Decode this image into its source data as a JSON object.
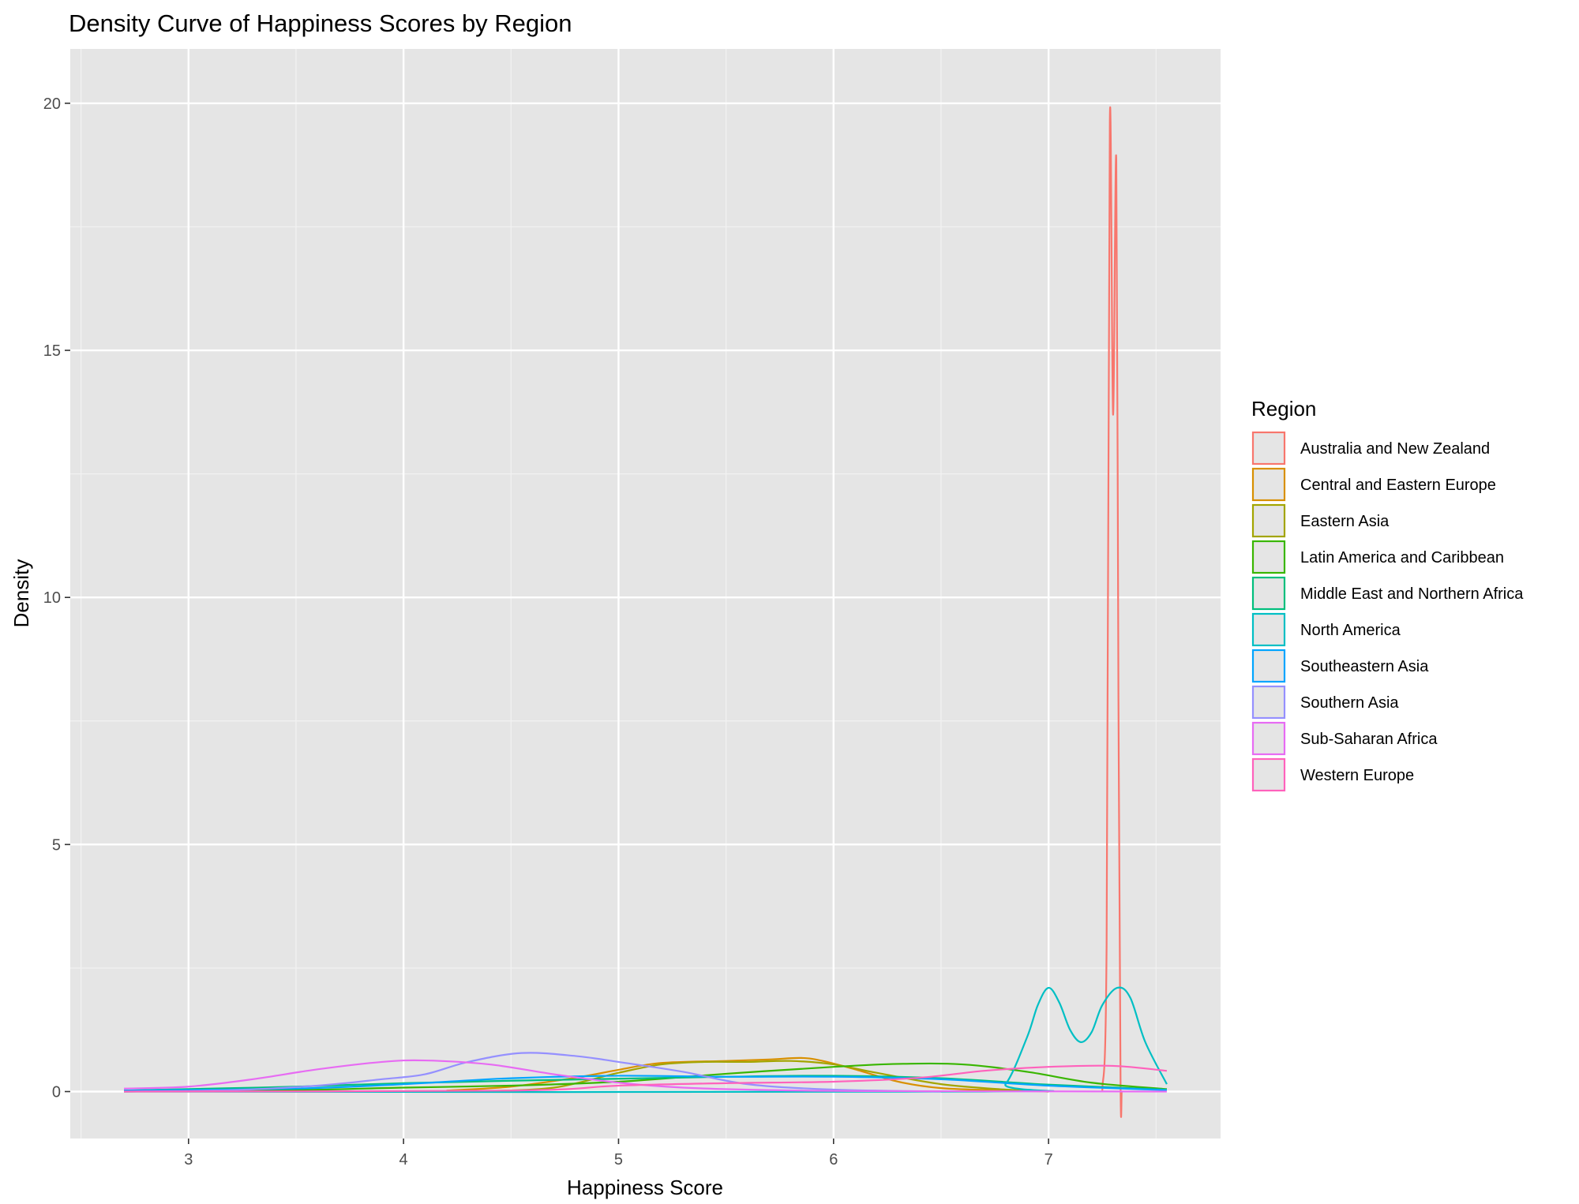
{
  "chart_data": {
    "type": "line",
    "title": "Density Curve of Happiness Scores by Region",
    "xlabel": "Happiness Score",
    "ylabel": "Density",
    "xlim": [
      2.45,
      7.8
    ],
    "ylim": [
      -0.95,
      21.1
    ],
    "x_ticks": [
      3,
      4,
      5,
      6,
      7
    ],
    "y_ticks": [
      0,
      5,
      10,
      15,
      20
    ],
    "x_tick_labels": [
      "3",
      "4",
      "5",
      "6",
      "7"
    ],
    "y_tick_labels": [
      "0",
      "5",
      "10",
      "15",
      "20"
    ],
    "grid": true,
    "background": "#e5e5e5",
    "grid_color": "#ffffff",
    "legend": {
      "title": "Region",
      "position": "right"
    },
    "series": [
      {
        "name": "Australia and New Zealand",
        "color": "#f8766d",
        "points": [
          [
            7.25,
            0.02
          ],
          [
            7.27,
            3.0
          ],
          [
            7.285,
            19.65
          ],
          [
            7.3,
            13.7
          ],
          [
            7.315,
            18.85
          ],
          [
            7.325,
            8.0
          ],
          [
            7.335,
            0.1
          ],
          [
            7.34,
            0.0
          ]
        ]
      },
      {
        "name": "Central and Eastern Europe",
        "color": "#d89000",
        "points": [
          [
            4.2,
            0.02
          ],
          [
            4.5,
            0.1
          ],
          [
            4.8,
            0.28
          ],
          [
            5.0,
            0.44
          ],
          [
            5.2,
            0.58
          ],
          [
            5.5,
            0.62
          ],
          [
            5.7,
            0.65
          ],
          [
            5.85,
            0.68
          ],
          [
            5.95,
            0.62
          ],
          [
            6.1,
            0.45
          ],
          [
            6.3,
            0.2
          ],
          [
            6.5,
            0.07
          ],
          [
            6.8,
            0.02
          ],
          [
            7.0,
            0.0
          ]
        ]
      },
      {
        "name": "Eastern Asia",
        "color": "#a3a500",
        "points": [
          [
            4.4,
            0.01
          ],
          [
            4.7,
            0.08
          ],
          [
            5.0,
            0.38
          ],
          [
            5.2,
            0.55
          ],
          [
            5.4,
            0.6
          ],
          [
            5.6,
            0.6
          ],
          [
            5.8,
            0.62
          ],
          [
            6.0,
            0.55
          ],
          [
            6.2,
            0.38
          ],
          [
            6.5,
            0.15
          ],
          [
            6.8,
            0.04
          ],
          [
            7.0,
            0.0
          ]
        ]
      },
      {
        "name": "Latin America and Caribbean",
        "color": "#39b600",
        "points": [
          [
            2.7,
            0.0
          ],
          [
            3.5,
            0.03
          ],
          [
            4.0,
            0.08
          ],
          [
            4.5,
            0.12
          ],
          [
            5.0,
            0.2
          ],
          [
            5.5,
            0.36
          ],
          [
            6.0,
            0.5
          ],
          [
            6.3,
            0.56
          ],
          [
            6.6,
            0.55
          ],
          [
            6.9,
            0.4
          ],
          [
            7.2,
            0.18
          ],
          [
            7.55,
            0.05
          ]
        ]
      },
      {
        "name": "Middle East and Northern Africa",
        "color": "#00bf7d",
        "points": [
          [
            2.7,
            0.02
          ],
          [
            3.0,
            0.05
          ],
          [
            3.5,
            0.1
          ],
          [
            4.0,
            0.17
          ],
          [
            4.5,
            0.22
          ],
          [
            5.0,
            0.26
          ],
          [
            5.5,
            0.3
          ],
          [
            6.0,
            0.32
          ],
          [
            6.5,
            0.27
          ],
          [
            7.0,
            0.14
          ],
          [
            7.55,
            0.04
          ]
        ]
      },
      {
        "name": "North America",
        "color": "#00bfc4",
        "points": [
          [
            2.7,
            0.0
          ],
          [
            6.7,
            0.0
          ],
          [
            6.8,
            0.15
          ],
          [
            6.9,
            1.1
          ],
          [
            6.95,
            1.75
          ],
          [
            7.0,
            2.1
          ],
          [
            7.05,
            1.8
          ],
          [
            7.1,
            1.25
          ],
          [
            7.15,
            1.0
          ],
          [
            7.2,
            1.2
          ],
          [
            7.25,
            1.75
          ],
          [
            7.32,
            2.1
          ],
          [
            7.38,
            1.9
          ],
          [
            7.45,
            1.0
          ],
          [
            7.55,
            0.15
          ]
        ]
      },
      {
        "name": "Southeastern Asia",
        "color": "#00a5ff",
        "points": [
          [
            2.7,
            0.02
          ],
          [
            3.5,
            0.06
          ],
          [
            4.0,
            0.15
          ],
          [
            4.5,
            0.27
          ],
          [
            5.0,
            0.32
          ],
          [
            5.5,
            0.3
          ],
          [
            6.0,
            0.3
          ],
          [
            6.5,
            0.25
          ],
          [
            7.0,
            0.12
          ],
          [
            7.55,
            0.03
          ]
        ]
      },
      {
        "name": "Southern Asia",
        "color": "#9590ff",
        "points": [
          [
            2.7,
            0.0
          ],
          [
            3.2,
            0.03
          ],
          [
            3.6,
            0.12
          ],
          [
            3.9,
            0.25
          ],
          [
            4.1,
            0.35
          ],
          [
            4.3,
            0.6
          ],
          [
            4.55,
            0.78
          ],
          [
            4.8,
            0.72
          ],
          [
            5.0,
            0.6
          ],
          [
            5.3,
            0.4
          ],
          [
            5.6,
            0.15
          ],
          [
            6.0,
            0.04
          ],
          [
            6.5,
            0.0
          ]
        ]
      },
      {
        "name": "Sub-Saharan Africa",
        "color": "#e76bf3",
        "points": [
          [
            2.7,
            0.06
          ],
          [
            3.0,
            0.1
          ],
          [
            3.3,
            0.25
          ],
          [
            3.6,
            0.45
          ],
          [
            3.9,
            0.6
          ],
          [
            4.1,
            0.63
          ],
          [
            4.4,
            0.55
          ],
          [
            4.7,
            0.35
          ],
          [
            5.0,
            0.18
          ],
          [
            5.3,
            0.08
          ],
          [
            5.7,
            0.03
          ],
          [
            6.2,
            0.01
          ],
          [
            7.55,
            0.0
          ]
        ]
      },
      {
        "name": "Western Europe",
        "color": "#ff62bc",
        "points": [
          [
            2.7,
            0.0
          ],
          [
            4.5,
            0.02
          ],
          [
            5.0,
            0.12
          ],
          [
            5.5,
            0.17
          ],
          [
            6.0,
            0.2
          ],
          [
            6.4,
            0.28
          ],
          [
            6.7,
            0.42
          ],
          [
            7.0,
            0.5
          ],
          [
            7.3,
            0.52
          ],
          [
            7.55,
            0.42
          ]
        ]
      }
    ]
  }
}
